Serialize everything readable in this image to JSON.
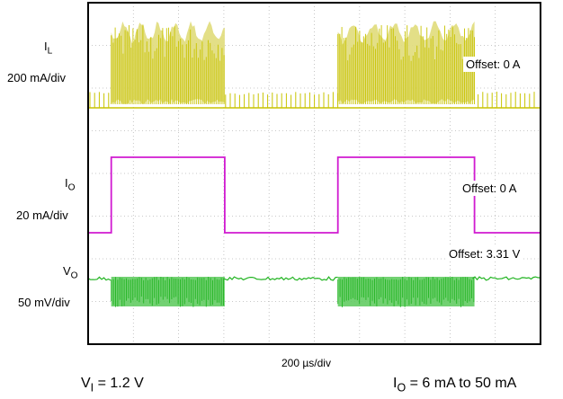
{
  "chart_data": {
    "type": "line",
    "title": "",
    "xlabel": "200 µs/div",
    "x_unit": "µs",
    "x_per_div": 200,
    "xlim": [
      0,
      2000
    ],
    "grid": true,
    "grid_divisions": {
      "horizontal": 10,
      "vertical": 8
    },
    "channels": [
      {
        "name_main": "I",
        "name_sub": "L",
        "scale": "200 mA/div",
        "offset_label": "Offset: 0 A",
        "color": "#c8c400",
        "fill_color": "#e0dc7a",
        "description_shape": "switching current, dense bursts during 50 mA load, short spikes during 6 mA load",
        "high_load_intervals_us": [
          [
            102,
            604
          ],
          [
            1104,
            1708
          ]
        ]
      },
      {
        "name_main": "I",
        "name_sub": "O",
        "scale": "20 mA/div",
        "offset_label": "Offset: 0 A",
        "color": "#d01ad0",
        "low_value": "6 mA",
        "high_value": "50 mA",
        "step_times_us": [
          102,
          604,
          1104,
          1708
        ]
      },
      {
        "name_main": "V",
        "name_sub": "O",
        "scale": "50 mV/div",
        "offset_label": "Offset: 3.31 V",
        "color": "#22b422",
        "fill_color": "#59c959",
        "high_load_intervals_us": [
          [
            102,
            604
          ],
          [
            1104,
            1708
          ]
        ]
      }
    ],
    "conditions": [
      {
        "main": "V",
        "sub": "I",
        "rest": " = 1.2 V"
      },
      {
        "main": "I",
        "sub": "O",
        "rest": " = 6 mA to 50 mA"
      }
    ]
  }
}
